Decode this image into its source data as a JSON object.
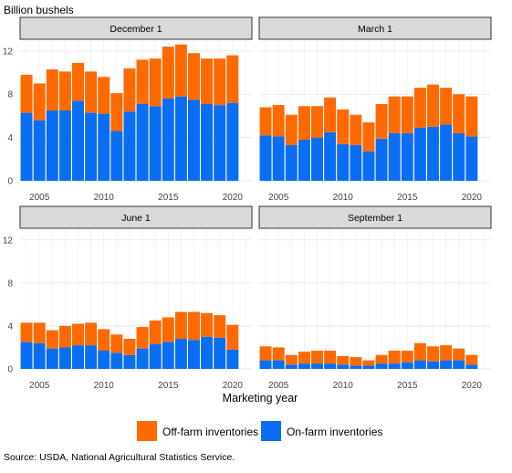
{
  "ylabel": "Billion bushels",
  "xlabel": "Marketing year",
  "source": "Source: USDA, National Agricultural Statistics Service.",
  "legend": [
    {
      "label": "Off-farm inventories",
      "color": "#FF6A00"
    },
    {
      "label": "On-farm inventories",
      "color": "#0A6EF5"
    }
  ],
  "chart_data": {
    "type": "bar",
    "stacked": true,
    "facet_layout": "2x2",
    "x": [
      2004,
      2005,
      2006,
      2007,
      2008,
      2009,
      2010,
      2011,
      2012,
      2013,
      2014,
      2015,
      2016,
      2017,
      2018,
      2019,
      2020,
      2021
    ],
    "x_ticks": [
      2005,
      2010,
      2015,
      2020
    ],
    "y_ticks": [
      0,
      4,
      8,
      12
    ],
    "ylim": [
      0,
      13
    ],
    "grid": true,
    "legend_position": "bottom",
    "panels": [
      {
        "title": "December 1",
        "series": [
          {
            "name": "On-farm inventories",
            "color": "#0A6EF5",
            "values": [
              6.3,
              5.6,
              6.5,
              6.5,
              7.4,
              6.3,
              6.2,
              4.6,
              6.4,
              7.1,
              6.9,
              7.6,
              7.8,
              7.5,
              7.1,
              7.0,
              7.2,
              null
            ]
          },
          {
            "name": "Off-farm inventories",
            "color": "#FF6A00",
            "values": [
              3.5,
              3.4,
              3.8,
              3.6,
              3.5,
              3.8,
              3.4,
              3.5,
              4.0,
              4.1,
              4.4,
              4.8,
              4.8,
              4.3,
              4.2,
              4.3,
              4.4,
              null
            ]
          }
        ]
      },
      {
        "title": "March 1",
        "series": [
          {
            "name": "On-farm inventories",
            "color": "#0A6EF5",
            "values": [
              4.2,
              4.1,
              3.3,
              3.8,
              4.0,
              4.5,
              3.4,
              3.3,
              2.7,
              3.9,
              4.4,
              4.4,
              4.9,
              5.0,
              5.2,
              4.4,
              4.1,
              null
            ]
          },
          {
            "name": "Off-farm inventories",
            "color": "#FF6A00",
            "values": [
              2.6,
              2.9,
              2.8,
              3.1,
              2.9,
              3.2,
              3.2,
              2.8,
              2.7,
              3.2,
              3.4,
              3.4,
              3.7,
              3.9,
              3.4,
              3.6,
              3.7,
              null
            ]
          }
        ]
      },
      {
        "title": "June 1",
        "series": [
          {
            "name": "On-farm inventories",
            "color": "#0A6EF5",
            "values": [
              2.5,
              2.4,
              1.9,
              2.0,
              2.2,
              2.2,
              1.7,
              1.5,
              1.3,
              1.9,
              2.3,
              2.5,
              2.8,
              2.7,
              3.0,
              2.9,
              1.8,
              null
            ]
          },
          {
            "name": "Off-farm inventories",
            "color": "#FF6A00",
            "values": [
              1.8,
              1.9,
              1.7,
              2.0,
              2.0,
              2.1,
              2.0,
              1.7,
              1.5,
              2.0,
              2.2,
              2.3,
              2.5,
              2.6,
              2.2,
              2.1,
              2.3,
              null
            ]
          }
        ]
      },
      {
        "title": "September 1",
        "series": [
          {
            "name": "On-farm inventories",
            "color": "#0A6EF5",
            "values": [
              0.8,
              0.8,
              0.4,
              0.5,
              0.5,
              0.5,
              0.4,
              0.3,
              0.3,
              0.5,
              0.5,
              0.6,
              0.8,
              0.7,
              0.8,
              0.8,
              0.4,
              null
            ]
          },
          {
            "name": "Off-farm inventories",
            "color": "#FF6A00",
            "values": [
              1.3,
              1.2,
              0.9,
              1.1,
              1.2,
              1.2,
              0.8,
              0.8,
              0.5,
              0.8,
              1.2,
              1.1,
              1.6,
              1.4,
              1.4,
              1.1,
              0.9,
              null
            ]
          }
        ]
      }
    ]
  }
}
